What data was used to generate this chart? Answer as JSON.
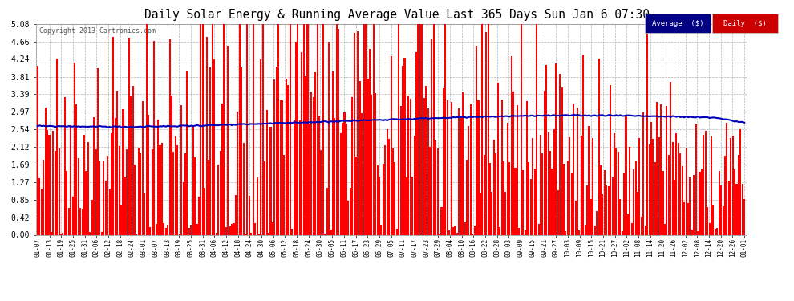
{
  "title": "Daily Solar Energy & Running Average Value Last 365 Days Sun Jan 6 07:30",
  "copyright": "Copyright 2013 Cartronics.com",
  "bar_color": "#FF0000",
  "avg_line_color": "#0000BB",
  "background_color": "#FFFFFF",
  "plot_bg_color": "#FFFFFF",
  "ylim": [
    0.0,
    5.08
  ],
  "yticks": [
    0.0,
    0.42,
    0.85,
    1.27,
    1.69,
    2.12,
    2.54,
    2.97,
    3.39,
    3.81,
    4.24,
    4.66,
    5.08
  ],
  "legend_avg_bg": "#000080",
  "legend_daily_bg": "#CC0000",
  "legend_avg_text": "Average  ($)",
  "legend_daily_text": "Daily  ($)",
  "xtick_labels": [
    "01-07",
    "01-13",
    "01-19",
    "01-25",
    "01-31",
    "02-06",
    "02-12",
    "02-18",
    "02-24",
    "03-01",
    "03-07",
    "03-13",
    "03-19",
    "03-25",
    "03-31",
    "04-06",
    "04-12",
    "04-18",
    "04-24",
    "04-30",
    "05-06",
    "05-12",
    "05-18",
    "05-24",
    "05-30",
    "06-05",
    "06-11",
    "06-17",
    "06-23",
    "06-29",
    "07-05",
    "07-11",
    "07-17",
    "07-23",
    "07-29",
    "08-04",
    "08-10",
    "08-16",
    "08-22",
    "08-28",
    "09-03",
    "09-09",
    "09-15",
    "09-21",
    "09-27",
    "10-03",
    "10-09",
    "10-15",
    "10-21",
    "10-27",
    "11-02",
    "11-08",
    "11-14",
    "11-20",
    "11-26",
    "12-02",
    "12-08",
    "12-14",
    "12-20",
    "12-26",
    "01-01"
  ],
  "avg_curve_x": [
    0,
    50,
    100,
    150,
    180,
    210,
    250,
    300,
    350,
    364
  ],
  "avg_curve_y": [
    2.62,
    2.6,
    2.65,
    2.73,
    2.78,
    2.82,
    2.87,
    2.88,
    2.82,
    2.7
  ]
}
